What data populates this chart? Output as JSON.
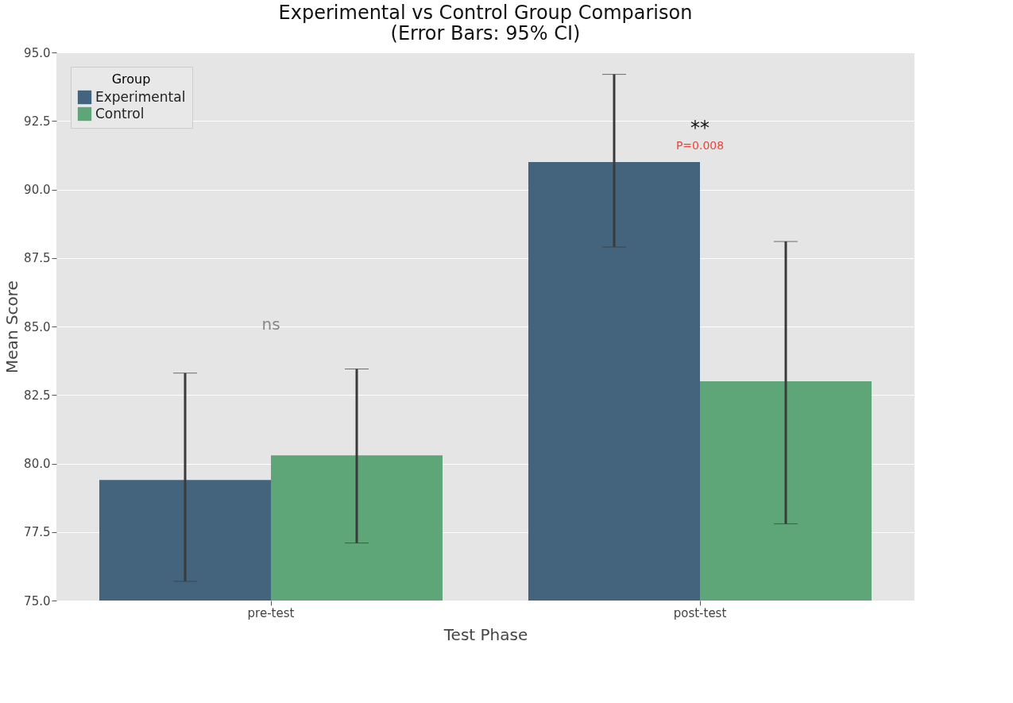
{
  "chart_data": {
    "type": "bar",
    "title": "Experimental vs Control Group Comparison\n(Error Bars: 95% CI)",
    "xlabel": "Test Phase",
    "ylabel": "Mean Score",
    "legend_title": "Group",
    "categories": [
      "pre-test",
      "post-test"
    ],
    "series": [
      {
        "name": "Experimental",
        "color": "#44647e",
        "values": [
          79.4,
          91.0
        ],
        "errors": [
          [
            75.7,
            83.3
          ],
          [
            87.9,
            94.2
          ]
        ]
      },
      {
        "name": "Control",
        "color": "#5ea577",
        "values": [
          80.3,
          83.0
        ],
        "errors": [
          [
            77.1,
            83.45
          ],
          [
            77.8,
            88.1
          ]
        ]
      }
    ],
    "ylim": [
      75,
      95
    ],
    "yticks": [
      {
        "value": 75,
        "label": "75.0"
      },
      {
        "value": 77.5,
        "label": "77.5"
      },
      {
        "value": 80,
        "label": "80.0"
      },
      {
        "value": 82.5,
        "label": "82.5"
      },
      {
        "value": 85,
        "label": "85.0"
      },
      {
        "value": 87.5,
        "label": "87.5"
      },
      {
        "value": 90,
        "label": "90.0"
      },
      {
        "value": 92.5,
        "label": "92.5"
      },
      {
        "value": 95,
        "label": "95.0"
      }
    ],
    "annotations": [
      "ns",
      "**",
      "P=0.008"
    ],
    "grid": "y",
    "legend": "top left"
  }
}
